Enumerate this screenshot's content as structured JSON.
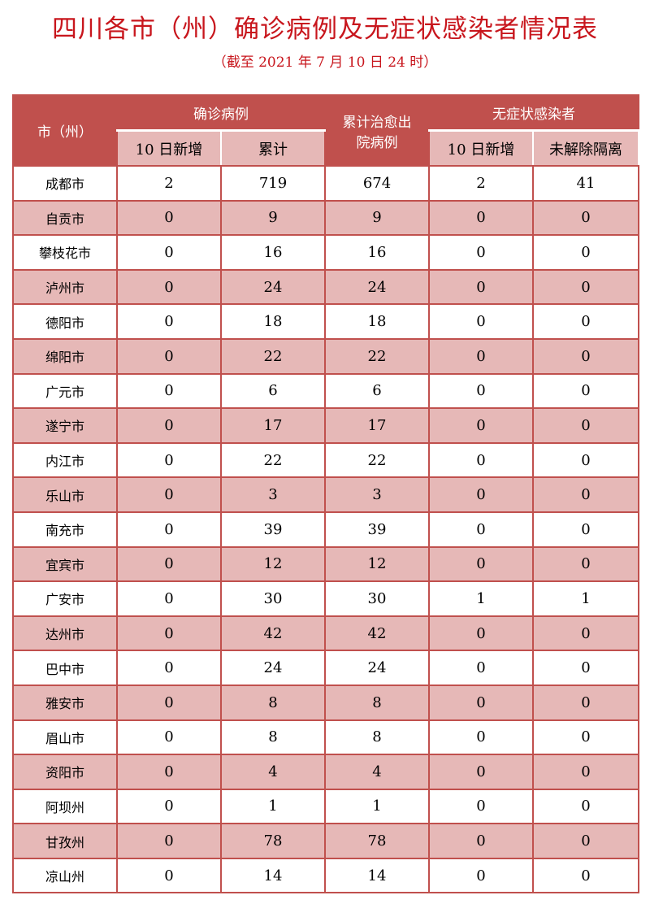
{
  "title": "四川各市（州）确诊病例及无症状感染者情况表",
  "subtitle": "（截至 2021 年 7 月 10 日 24 时）",
  "colors": {
    "title": "#c8161d",
    "header_bg": "#c0504d",
    "stripe": "#e6b8b7"
  },
  "header": {
    "city": "市（州）",
    "confirmed": "确诊病例",
    "new": "10 日新增",
    "total": "累计",
    "recovered": "累计治愈出院病例",
    "asymptomatic": "无症状感染者",
    "asym_new": "10 日新增",
    "asym_isolated": "未解除隔离"
  },
  "rows": [
    [
      "成都市",
      "2",
      "719",
      "674",
      "2",
      "41"
    ],
    [
      "自贡市",
      "0",
      "9",
      "9",
      "0",
      "0"
    ],
    [
      "攀枝花市",
      "0",
      "16",
      "16",
      "0",
      "0"
    ],
    [
      "泸州市",
      "0",
      "24",
      "24",
      "0",
      "0"
    ],
    [
      "德阳市",
      "0",
      "18",
      "18",
      "0",
      "0"
    ],
    [
      "绵阳市",
      "0",
      "22",
      "22",
      "0",
      "0"
    ],
    [
      "广元市",
      "0",
      "6",
      "6",
      "0",
      "0"
    ],
    [
      "遂宁市",
      "0",
      "17",
      "17",
      "0",
      "0"
    ],
    [
      "内江市",
      "0",
      "22",
      "22",
      "0",
      "0"
    ],
    [
      "乐山市",
      "0",
      "3",
      "3",
      "0",
      "0"
    ],
    [
      "南充市",
      "0",
      "39",
      "39",
      "0",
      "0"
    ],
    [
      "宜宾市",
      "0",
      "12",
      "12",
      "0",
      "0"
    ],
    [
      "广安市",
      "0",
      "30",
      "30",
      "1",
      "1"
    ],
    [
      "达州市",
      "0",
      "42",
      "42",
      "0",
      "0"
    ],
    [
      "巴中市",
      "0",
      "24",
      "24",
      "0",
      "0"
    ],
    [
      "雅安市",
      "0",
      "8",
      "8",
      "0",
      "0"
    ],
    [
      "眉山市",
      "0",
      "8",
      "8",
      "0",
      "0"
    ],
    [
      "资阳市",
      "0",
      "4",
      "4",
      "0",
      "0"
    ],
    [
      "阿坝州",
      "0",
      "1",
      "1",
      "0",
      "0"
    ],
    [
      "甘孜州",
      "0",
      "78",
      "78",
      "0",
      "0"
    ],
    [
      "凉山州",
      "0",
      "14",
      "14",
      "0",
      "0"
    ]
  ]
}
